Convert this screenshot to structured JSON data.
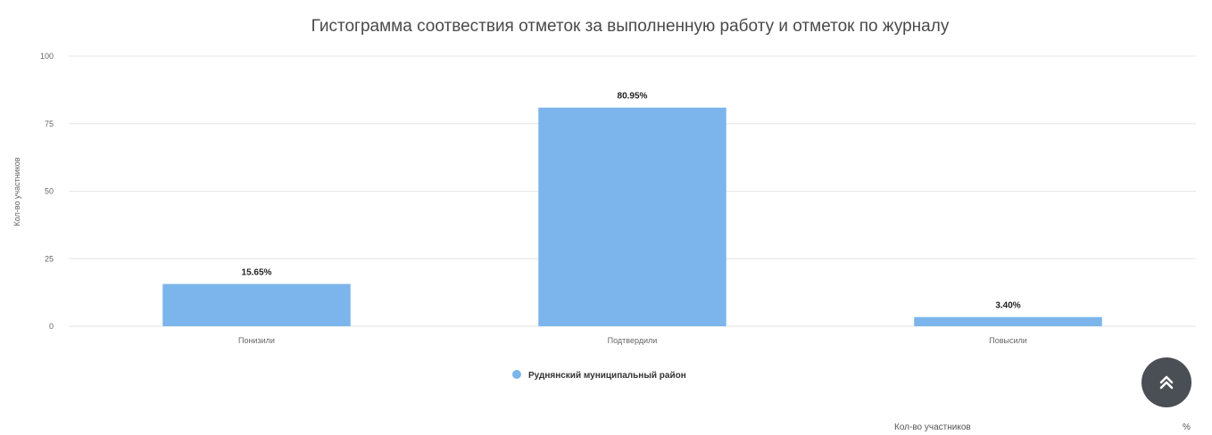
{
  "chart_data": {
    "type": "bar",
    "title": "Гистограмма соотвествия отметок за выполненную работу и отметок по журналу",
    "xlabel": "",
    "ylabel": "Кол-во участников",
    "categories": [
      "Понизили",
      "Подтвердили",
      "Повысили"
    ],
    "series": [
      {
        "name": "Руднянский муниципальный район",
        "values": [
          15.65,
          80.95,
          3.4
        ],
        "labels": [
          "15.65%",
          "80.95%",
          "3.40%"
        ]
      }
    ],
    "ylim": [
      0,
      100
    ],
    "yticks": [
      0,
      25,
      50,
      75,
      100
    ],
    "grid": true,
    "legend_position": "bottom-center",
    "colors": {
      "bar": "#7cb5ec"
    }
  },
  "scroll_top": {
    "icon": "double-chevron-up-icon",
    "background": "#4a4f55"
  },
  "footer": {
    "col1": "Кол-во участников",
    "col2": "%"
  }
}
